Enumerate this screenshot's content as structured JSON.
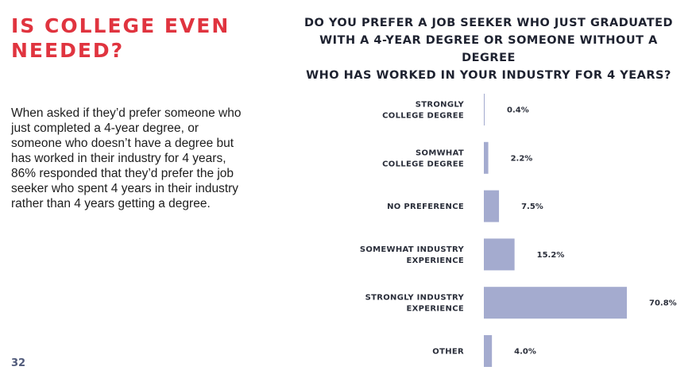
{
  "headline": {
    "lines": [
      "IS COLLEGE EVEN",
      "NEEDED?"
    ]
  },
  "body_text": "When asked if they’d prefer someone who just completed a 4-year degree, or someone who doesn’t have a degree but has worked in their industry for 4 years, 86% responded that they’d prefer the job seeker who spent 4 years in their industry rather than 4 years getting a degree.",
  "page_number": "32",
  "colors": {
    "accent": "#e0343f",
    "bar": "#a4abcf",
    "text": "#1d1d1d"
  },
  "chart_data": {
    "type": "bar",
    "orientation": "horizontal",
    "title_lines": [
      "DO YOU PREFER A JOB SEEKER WHO JUST GRADUATED",
      "WITH A 4-YEAR DEGREE OR SOMEONE WITHOUT A DEGREE",
      "WHO HAS WORKED IN YOUR INDUSTRY FOR 4 YEARS?"
    ],
    "categories": [
      [
        "STRONGLY",
        "COLLEGE DEGREE"
      ],
      [
        "SOMWHAT",
        "COLLEGE DEGREE"
      ],
      [
        "NO PREFERENCE"
      ],
      [
        "SOMEWHAT INDUSTRY",
        "EXPERIENCE"
      ],
      [
        "STRONGLY INDUSTRY",
        "EXPERIENCE"
      ],
      [
        "OTHER"
      ]
    ],
    "values": [
      0.4,
      2.2,
      7.5,
      15.2,
      70.8,
      4.0
    ],
    "value_labels": [
      "0.4%",
      "2.2%",
      "7.5%",
      "15.2%",
      "70.8%",
      "4.0%"
    ],
    "xlim": [
      0,
      70.8
    ],
    "grid": false,
    "legend": "none"
  }
}
